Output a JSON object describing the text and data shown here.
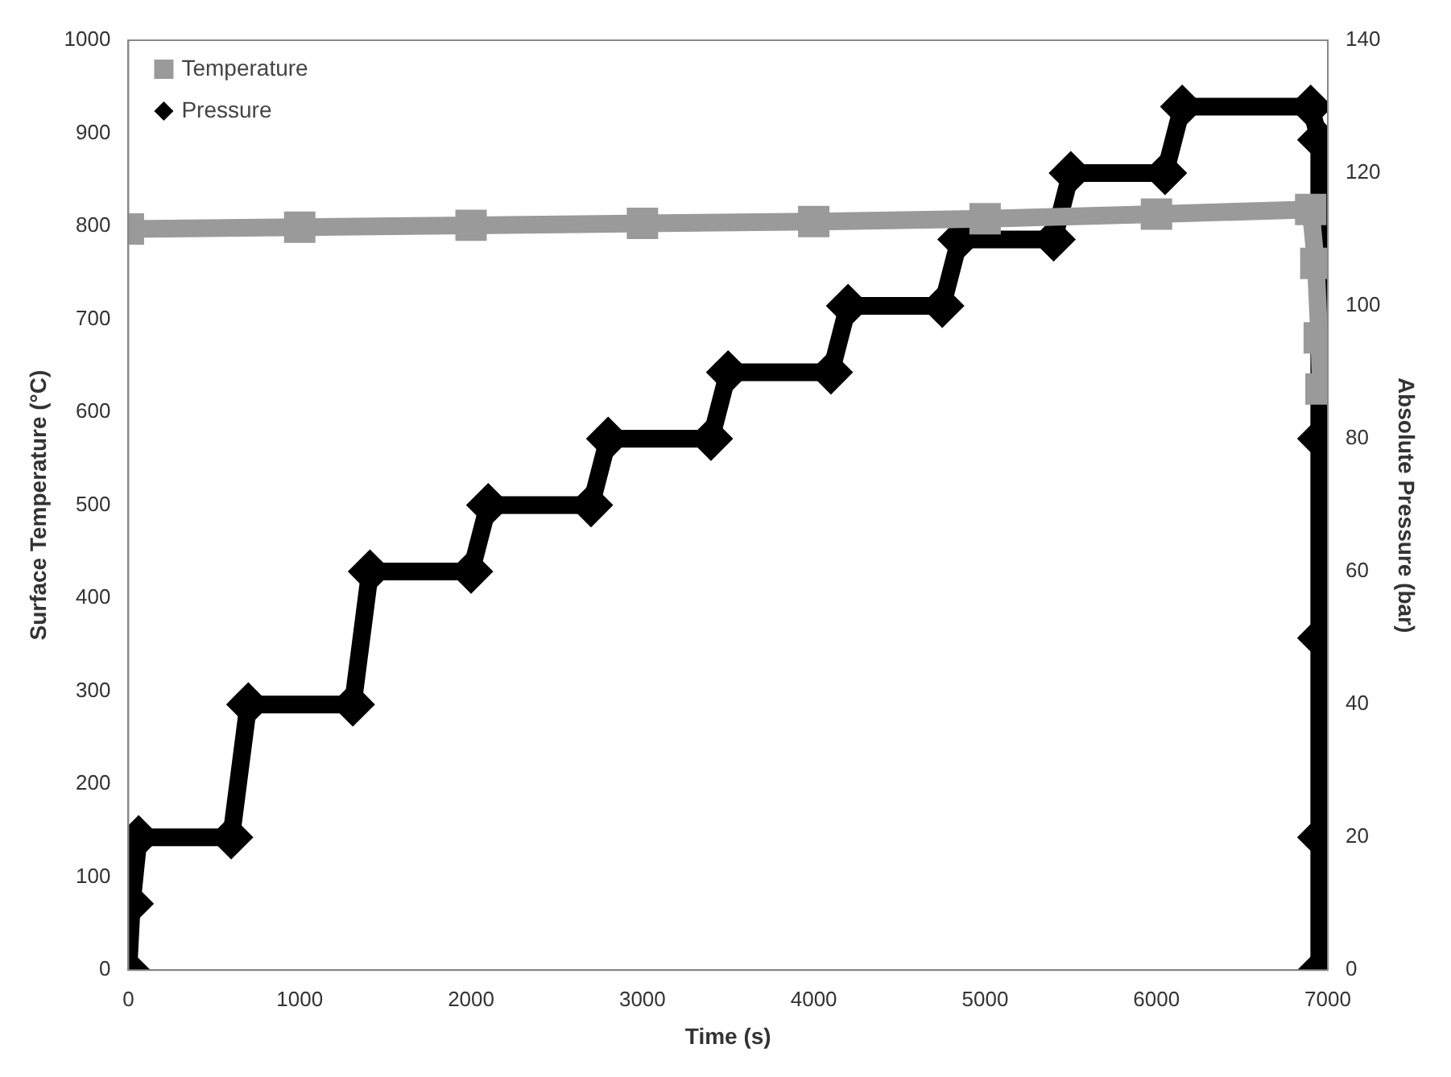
{
  "chart_data": {
    "type": "line",
    "xlabel": "Time (s)",
    "ylabel": "Surface Temperature (°C)",
    "y2label": "Absolute Pressure (bar)",
    "xlim": [
      0,
      7000
    ],
    "xticks": [
      0,
      1000,
      2000,
      3000,
      4000,
      5000,
      6000,
      7000
    ],
    "ylim": [
      0,
      1000
    ],
    "yticks": [
      0,
      100,
      200,
      300,
      400,
      500,
      600,
      700,
      800,
      900,
      1000
    ],
    "y2lim": [
      0,
      140
    ],
    "y2ticks": [
      0,
      20,
      40,
      60,
      80,
      100,
      120,
      140
    ],
    "grid": false,
    "legend": "top left",
    "line_style": "solid",
    "series": [
      {
        "name": "Temperature",
        "color": "#9a9a9a",
        "marker": "square",
        "x": [
          0,
          1000,
          2000,
          3000,
          4000,
          5000,
          6000,
          6900,
          6930,
          6950,
          6960
        ],
        "values": [
          797,
          799,
          801,
          803,
          805,
          808,
          813,
          818,
          760,
          680,
          625
        ]
      },
      {
        "name": "Pressure",
        "color": "#000000",
        "marker": "diamond",
        "axis": "y2",
        "x": [
          0,
          20,
          60,
          600,
          700,
          1310,
          1410,
          2000,
          2100,
          2700,
          2800,
          3400,
          3500,
          4100,
          4200,
          4750,
          4850,
          5400,
          5500,
          6050,
          6150,
          6900,
          6950,
          6950,
          6950,
          6950,
          6950
        ],
        "values": [
          0,
          10,
          20,
          20,
          40,
          40,
          60,
          60,
          70,
          70,
          80,
          80,
          90,
          90,
          100,
          100,
          110,
          110,
          120,
          120,
          130,
          130,
          125,
          80,
          50,
          20,
          0
        ]
      }
    ]
  }
}
